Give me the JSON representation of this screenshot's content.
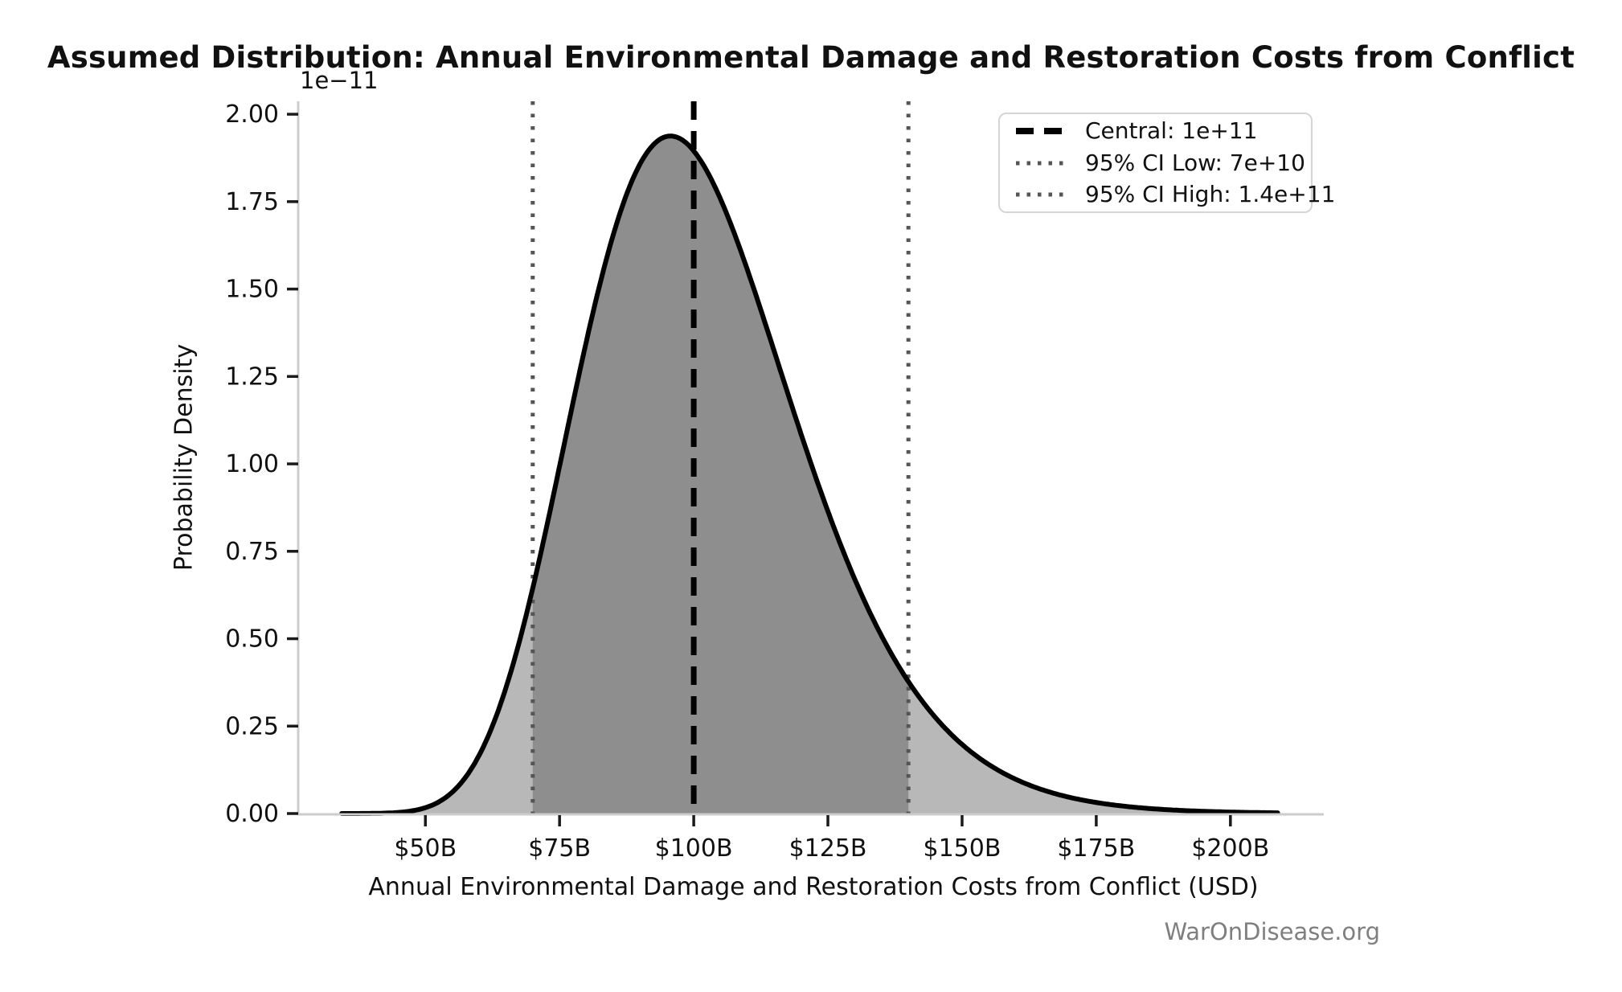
{
  "figure": {
    "title": "Assumed Distribution: Annual Environmental Damage and Restoration Costs from Conflict",
    "watermark": "WarOnDisease.org"
  },
  "chart_data": {
    "type": "area",
    "title": "Assumed Distribution: Annual Environmental Damage and Restoration Costs from Conflict",
    "xlabel": "Annual Environmental Damage and Restoration Costs from Conflict (USD)",
    "ylabel": "Probability Density",
    "y_axis_offset_text": "1e−11",
    "grid": false,
    "legend_position": "upper right",
    "xlim_billions": [
      26.3,
      217.4
    ],
    "ylim_density_1e11": [
      0,
      2.037
    ],
    "x_ticks": {
      "values_billions": [
        50,
        75,
        100,
        125,
        150,
        175,
        200
      ],
      "labels": [
        "$50B",
        "$75B",
        "$100B",
        "$125B",
        "$150B",
        "$175B",
        "$200B"
      ]
    },
    "y_ticks": {
      "values_1e11": [
        0,
        0.25,
        0.5,
        0.75,
        1.0,
        1.25,
        1.5,
        1.75,
        2.0
      ],
      "labels": [
        "0.00",
        "0.25",
        "0.50",
        "0.75",
        "1.00",
        "1.25",
        "1.50",
        "1.75",
        "2.00"
      ]
    },
    "distribution": {
      "family": "lognormal",
      "median_usd": 100000000000.0,
      "sigma_log": 0.2105,
      "central_usd": 100000000000.0,
      "ci95_low_usd": 70000000000.0,
      "ci95_high_usd": 140000000000.0,
      "peak_density_per_usd": 1.94e-11,
      "peak_at_usd": 95700000000.0,
      "curve_range_billions": [
        34.4,
        208.8
      ],
      "shaded_ci_range_billions": [
        70,
        140
      ]
    },
    "legend": [
      {
        "label": "Central: 1e+11",
        "style": "dashed",
        "color": "#000000"
      },
      {
        "label": "95% CI Low: 7e+10",
        "style": "dotted",
        "color": "#555555"
      },
      {
        "label": "95% CI High: 1.4e+11",
        "style": "dotted",
        "color": "#555555"
      }
    ],
    "colors": {
      "curve": "#000000",
      "fill_light": "#b8b8b8",
      "fill_dark": "#8e8e8e",
      "central_line": "#000000",
      "ci_line": "#555555",
      "spine": "#cccccc",
      "tick_mark": "#1a1a1a",
      "text": "#111111",
      "watermark": "#7f7f7f"
    }
  }
}
